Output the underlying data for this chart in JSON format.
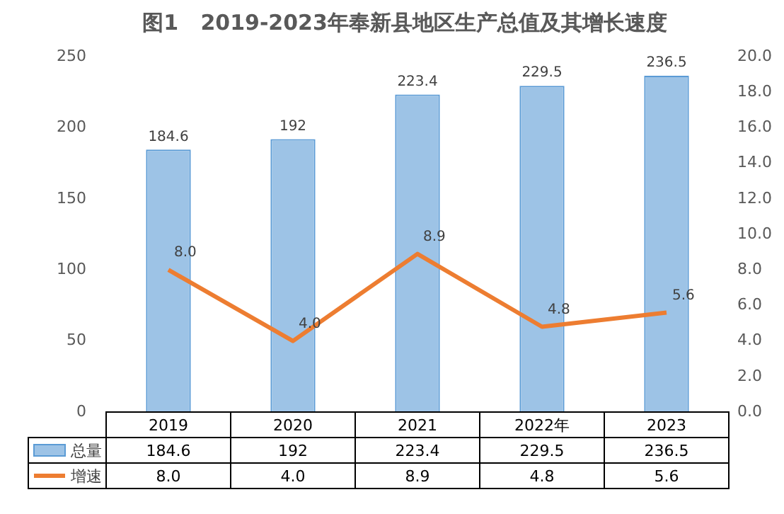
{
  "chart_data": {
    "type": "bar",
    "title": "图1   2019-2023年奉新县地区生产总值及其增长速度",
    "categories": [
      "2019",
      "2020",
      "2021",
      "2022年",
      "2023"
    ],
    "series": [
      {
        "name": "总量",
        "color": "#9dc3e6",
        "values": [
          184.6,
          192,
          223.4,
          229.5,
          236.5
        ],
        "value_labels": [
          "184.6",
          "192",
          "223.4",
          "229.5",
          "236.5"
        ]
      },
      {
        "name": "增速",
        "type": "line",
        "axis": "y2",
        "color": "#ed7d31",
        "values": [
          8.0,
          4.0,
          8.9,
          4.8,
          5.6
        ],
        "value_labels": [
          "8.0",
          "4.0",
          "8.9",
          "4.8",
          "5.6"
        ]
      }
    ],
    "ylim": [
      0,
      250
    ],
    "yticks": [
      0,
      50,
      100,
      150,
      200,
      250
    ],
    "y2lim": [
      0,
      20
    ],
    "y2ticks": [
      {
        "value": 0,
        "label": "0.0"
      },
      {
        "value": 2,
        "label": "2.0"
      },
      {
        "value": 4,
        "label": "4.0"
      },
      {
        "value": 6,
        "label": "6.0"
      },
      {
        "value": 8,
        "label": "8.0"
      },
      {
        "value": 10,
        "label": "10.0"
      },
      {
        "value": 12,
        "label": "12.0"
      },
      {
        "value": 14,
        "label": "14.0"
      },
      {
        "value": 16,
        "label": "16.0"
      },
      {
        "value": 18,
        "label": "18.0"
      },
      {
        "value": 20,
        "label": "20.0"
      }
    ],
    "legend": "bottom"
  }
}
